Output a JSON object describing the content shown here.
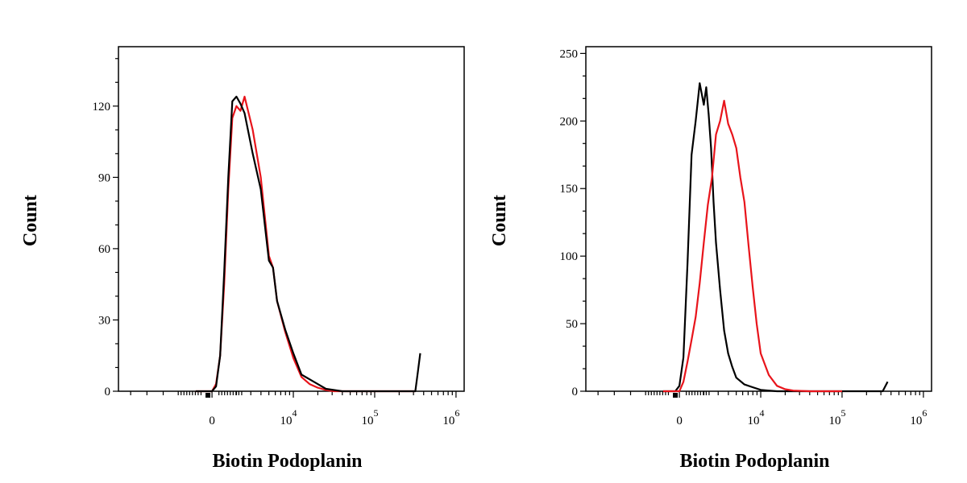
{
  "chart_data": [
    {
      "type": "line",
      "xlabel": "Biotin Podoplanin",
      "ylabel": "Count",
      "ylim": [
        0,
        145
      ],
      "y_ticks": [
        {
          "value": 0,
          "label": "0"
        },
        {
          "value": 30,
          "label": "30"
        },
        {
          "value": 60,
          "label": "60"
        },
        {
          "value": 90,
          "label": "90"
        },
        {
          "value": 120,
          "label": "120"
        }
      ],
      "x_scale": "biexponential",
      "x_ticks": [
        {
          "label": "0",
          "exp": ""
        },
        {
          "label": "10",
          "exp": "4"
        },
        {
          "label": "10",
          "exp": "5"
        },
        {
          "label": "10",
          "exp": "6"
        }
      ],
      "series": [
        {
          "color": "#e8141b",
          "x": [
            -0.2,
            0,
            0.05,
            0.1,
            0.15,
            0.2,
            0.25,
            0.3,
            0.35,
            0.4,
            0.5,
            0.6,
            0.7,
            0.75,
            0.8,
            0.9,
            1.0,
            1.1,
            1.2,
            1.3,
            1.4,
            1.5,
            1.6,
            1.8,
            2.5
          ],
          "y": [
            0,
            0,
            3,
            15,
            45,
            85,
            115,
            120,
            118,
            124,
            110,
            90,
            57,
            52,
            38,
            25,
            14,
            6,
            3,
            1.5,
            0.5,
            0,
            0,
            0,
            0
          ]
        },
        {
          "color": "#000000",
          "x": [
            -0.2,
            0,
            0.05,
            0.1,
            0.15,
            0.2,
            0.25,
            0.3,
            0.35,
            0.4,
            0.5,
            0.6,
            0.7,
            0.75,
            0.8,
            0.9,
            1.0,
            1.1,
            1.2,
            1.3,
            1.4,
            1.5,
            1.6,
            1.8,
            2.5,
            2.53,
            2.56
          ],
          "y": [
            0,
            0,
            2,
            15,
            50,
            90,
            122,
            124,
            121,
            117,
            100,
            85,
            55,
            52,
            38,
            26,
            16,
            7,
            5,
            3,
            1,
            0.5,
            0,
            0,
            0,
            8,
            16
          ]
        }
      ]
    },
    {
      "type": "line",
      "xlabel": "Biotin Podoplanin",
      "ylabel": "Count",
      "ylim": [
        0,
        255
      ],
      "y_ticks": [
        {
          "value": 0,
          "label": "0"
        },
        {
          "value": 50,
          "label": "50"
        },
        {
          "value": 100,
          "label": "100"
        },
        {
          "value": 150,
          "label": "150"
        },
        {
          "value": 200,
          "label": "200"
        },
        {
          "value": 250,
          "label": "250"
        }
      ],
      "x_scale": "biexponential",
      "x_ticks": [
        {
          "label": "0",
          "exp": ""
        },
        {
          "label": "10",
          "exp": "4"
        },
        {
          "label": "10",
          "exp": "5"
        },
        {
          "label": "10",
          "exp": "6"
        }
      ],
      "series": [
        {
          "color": "#000000",
          "x": [
            -0.2,
            -0.05,
            0,
            0.05,
            0.1,
            0.15,
            0.2,
            0.25,
            0.3,
            0.33,
            0.36,
            0.39,
            0.42,
            0.45,
            0.5,
            0.55,
            0.6,
            0.65,
            0.7,
            0.8,
            0.9,
            1.0,
            1.1,
            1.2,
            1.3,
            1.5,
            2.5,
            2.56
          ],
          "y": [
            0,
            0,
            4,
            25,
            95,
            175,
            200,
            228,
            212,
            225,
            205,
            180,
            140,
            110,
            75,
            45,
            28,
            18,
            10,
            5,
            3,
            1,
            0.5,
            0,
            0,
            0,
            0,
            7
          ]
        },
        {
          "color": "#e8141b",
          "x": [
            -0.2,
            0,
            0.05,
            0.1,
            0.15,
            0.2,
            0.25,
            0.3,
            0.35,
            0.4,
            0.45,
            0.5,
            0.55,
            0.6,
            0.65,
            0.7,
            0.75,
            0.8,
            0.85,
            0.9,
            0.95,
            1.0,
            1.1,
            1.2,
            1.3,
            1.4,
            1.6,
            2.0
          ],
          "y": [
            0,
            0,
            7,
            22,
            38,
            55,
            80,
            110,
            138,
            158,
            190,
            200,
            215,
            198,
            190,
            180,
            158,
            140,
            108,
            78,
            50,
            28,
            12,
            4,
            1.5,
            0.5,
            0,
            0
          ]
        }
      ]
    }
  ]
}
